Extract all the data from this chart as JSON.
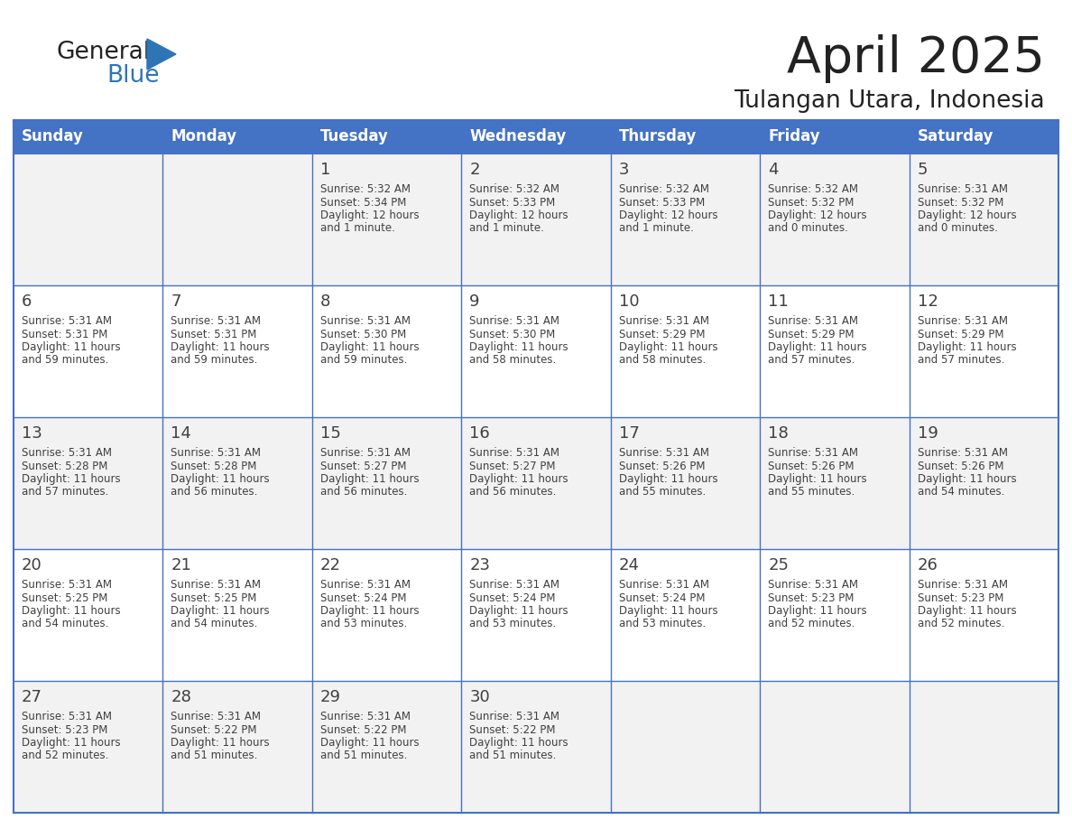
{
  "title": "April 2025",
  "subtitle": "Tulangan Utara, Indonesia",
  "days_of_week": [
    "Sunday",
    "Monday",
    "Tuesday",
    "Wednesday",
    "Thursday",
    "Friday",
    "Saturday"
  ],
  "header_bg": "#4472C4",
  "header_text_color": "#FFFFFF",
  "row_bg_even": "#F2F2F2",
  "row_bg_odd": "#FFFFFF",
  "border_color": "#4472C4",
  "text_color": "#404040",
  "logo_general_color": "#222222",
  "logo_blue_color": "#2E75B6",
  "calendar_data": [
    [
      {
        "day": "",
        "sunrise": "",
        "sunset": "",
        "daylight": ""
      },
      {
        "day": "",
        "sunrise": "",
        "sunset": "",
        "daylight": ""
      },
      {
        "day": "1",
        "sunrise": "5:32 AM",
        "sunset": "5:34 PM",
        "daylight": "12 hours and 1 minute."
      },
      {
        "day": "2",
        "sunrise": "5:32 AM",
        "sunset": "5:33 PM",
        "daylight": "12 hours and 1 minute."
      },
      {
        "day": "3",
        "sunrise": "5:32 AM",
        "sunset": "5:33 PM",
        "daylight": "12 hours and 1 minute."
      },
      {
        "day": "4",
        "sunrise": "5:32 AM",
        "sunset": "5:32 PM",
        "daylight": "12 hours and 0 minutes."
      },
      {
        "day": "5",
        "sunrise": "5:31 AM",
        "sunset": "5:32 PM",
        "daylight": "12 hours and 0 minutes."
      }
    ],
    [
      {
        "day": "6",
        "sunrise": "5:31 AM",
        "sunset": "5:31 PM",
        "daylight": "11 hours and 59 minutes."
      },
      {
        "day": "7",
        "sunrise": "5:31 AM",
        "sunset": "5:31 PM",
        "daylight": "11 hours and 59 minutes."
      },
      {
        "day": "8",
        "sunrise": "5:31 AM",
        "sunset": "5:30 PM",
        "daylight": "11 hours and 59 minutes."
      },
      {
        "day": "9",
        "sunrise": "5:31 AM",
        "sunset": "5:30 PM",
        "daylight": "11 hours and 58 minutes."
      },
      {
        "day": "10",
        "sunrise": "5:31 AM",
        "sunset": "5:29 PM",
        "daylight": "11 hours and 58 minutes."
      },
      {
        "day": "11",
        "sunrise": "5:31 AM",
        "sunset": "5:29 PM",
        "daylight": "11 hours and 57 minutes."
      },
      {
        "day": "12",
        "sunrise": "5:31 AM",
        "sunset": "5:29 PM",
        "daylight": "11 hours and 57 minutes."
      }
    ],
    [
      {
        "day": "13",
        "sunrise": "5:31 AM",
        "sunset": "5:28 PM",
        "daylight": "11 hours and 57 minutes."
      },
      {
        "day": "14",
        "sunrise": "5:31 AM",
        "sunset": "5:28 PM",
        "daylight": "11 hours and 56 minutes."
      },
      {
        "day": "15",
        "sunrise": "5:31 AM",
        "sunset": "5:27 PM",
        "daylight": "11 hours and 56 minutes."
      },
      {
        "day": "16",
        "sunrise": "5:31 AM",
        "sunset": "5:27 PM",
        "daylight": "11 hours and 56 minutes."
      },
      {
        "day": "17",
        "sunrise": "5:31 AM",
        "sunset": "5:26 PM",
        "daylight": "11 hours and 55 minutes."
      },
      {
        "day": "18",
        "sunrise": "5:31 AM",
        "sunset": "5:26 PM",
        "daylight": "11 hours and 55 minutes."
      },
      {
        "day": "19",
        "sunrise": "5:31 AM",
        "sunset": "5:26 PM",
        "daylight": "11 hours and 54 minutes."
      }
    ],
    [
      {
        "day": "20",
        "sunrise": "5:31 AM",
        "sunset": "5:25 PM",
        "daylight": "11 hours and 54 minutes."
      },
      {
        "day": "21",
        "sunrise": "5:31 AM",
        "sunset": "5:25 PM",
        "daylight": "11 hours and 54 minutes."
      },
      {
        "day": "22",
        "sunrise": "5:31 AM",
        "sunset": "5:24 PM",
        "daylight": "11 hours and 53 minutes."
      },
      {
        "day": "23",
        "sunrise": "5:31 AM",
        "sunset": "5:24 PM",
        "daylight": "11 hours and 53 minutes."
      },
      {
        "day": "24",
        "sunrise": "5:31 AM",
        "sunset": "5:24 PM",
        "daylight": "11 hours and 53 minutes."
      },
      {
        "day": "25",
        "sunrise": "5:31 AM",
        "sunset": "5:23 PM",
        "daylight": "11 hours and 52 minutes."
      },
      {
        "day": "26",
        "sunrise": "5:31 AM",
        "sunset": "5:23 PM",
        "daylight": "11 hours and 52 minutes."
      }
    ],
    [
      {
        "day": "27",
        "sunrise": "5:31 AM",
        "sunset": "5:23 PM",
        "daylight": "11 hours and 52 minutes."
      },
      {
        "day": "28",
        "sunrise": "5:31 AM",
        "sunset": "5:22 PM",
        "daylight": "11 hours and 51 minutes."
      },
      {
        "day": "29",
        "sunrise": "5:31 AM",
        "sunset": "5:22 PM",
        "daylight": "11 hours and 51 minutes."
      },
      {
        "day": "30",
        "sunrise": "5:31 AM",
        "sunset": "5:22 PM",
        "daylight": "11 hours and 51 minutes."
      },
      {
        "day": "",
        "sunrise": "",
        "sunset": "",
        "daylight": ""
      },
      {
        "day": "",
        "sunrise": "",
        "sunset": "",
        "daylight": ""
      },
      {
        "day": "",
        "sunrise": "",
        "sunset": "",
        "daylight": ""
      }
    ]
  ]
}
